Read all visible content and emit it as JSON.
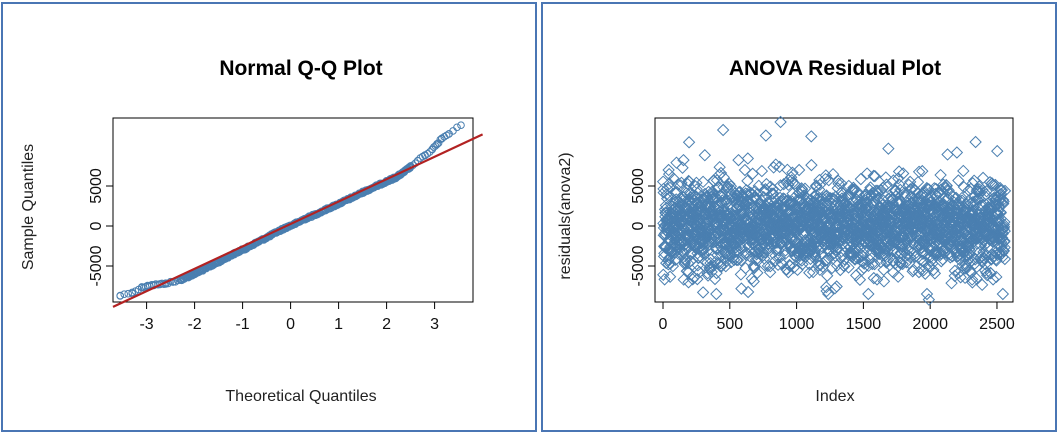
{
  "chart_data": [
    {
      "type": "scatter",
      "title": "Normal Q-Q Plot",
      "xlabel": "Theoretical Quantiles",
      "ylabel": "Sample Quantiles",
      "xlim": [
        -3.7,
        3.8
      ],
      "ylim": [
        -9500,
        13500
      ],
      "xticks": [
        -3,
        -2,
        -1,
        0,
        1,
        2,
        3
      ],
      "xtick_labels": [
        "-3",
        "-2",
        "-1",
        "0",
        "1",
        "2",
        "3"
      ],
      "yticks": [
        -5000,
        0,
        5000
      ],
      "ytick_labels": [
        "-5000",
        "0",
        "5000"
      ],
      "marker": "circle",
      "point_color": "#4a7fb0",
      "line_color": "#b22222",
      "series": [
        {
          "x": [
            -3.55,
            -3.3,
            -3.1,
            -2.98,
            -2.85,
            -2.72,
            -2.6,
            -2.45,
            -2.3,
            -2.1,
            -1.9,
            -1.7,
            -1.5,
            -1.3,
            -1.1,
            -0.9,
            -0.7,
            -0.5,
            -0.3,
            -0.1,
            0.1,
            0.3,
            0.5,
            0.7,
            0.9,
            1.1,
            1.3,
            1.5,
            1.7,
            1.9,
            2.05,
            2.2,
            2.35,
            2.5,
            2.65,
            2.8,
            2.95,
            3.05,
            3.15,
            3.3,
            3.55
          ],
          "y": [
            -8700,
            -8300,
            -7700,
            -7450,
            -7350,
            -7300,
            -7150,
            -7000,
            -6750,
            -6250,
            -5700,
            -5100,
            -4500,
            -3850,
            -3250,
            -2700,
            -2050,
            -1450,
            -800,
            -200,
            300,
            900,
            1400,
            1950,
            2500,
            3050,
            3600,
            4200,
            4750,
            5300,
            5700,
            6100,
            6700,
            7400,
            8150,
            8800,
            9600,
            10200,
            10900,
            11500,
            12600
          ]
        }
      ],
      "reference_line": {
        "slope": 2800,
        "intercept": 250
      }
    },
    {
      "type": "scatter",
      "title": "ANOVA Residual Plot",
      "xlabel": "Index",
      "ylabel": "residuals(anova2)",
      "xlim": [
        -60,
        2620
      ],
      "ylim": [
        -9500,
        13500
      ],
      "xticks": [
        0,
        500,
        1000,
        1500,
        2000,
        2500
      ],
      "xtick_labels": [
        "0",
        "500",
        "1000",
        "1500",
        "2000",
        "2500"
      ],
      "yticks": [
        -5000,
        0,
        5000
      ],
      "ytick_labels": [
        "-5000",
        "0",
        "5000"
      ],
      "marker": "diamond",
      "point_color": "#4a7fb0",
      "n_points": 2560,
      "residual_sd": 2750,
      "highlighted_points": [
        {
          "x": 880,
          "y": 13000
        },
        {
          "x": 770,
          "y": 11300
        },
        {
          "x": 450,
          "y": 12000
        },
        {
          "x": 1110,
          "y": 11200
        },
        {
          "x": 2340,
          "y": 10500
        },
        {
          "x": 1990,
          "y": -9200
        },
        {
          "x": 300,
          "y": -8300
        }
      ]
    }
  ]
}
